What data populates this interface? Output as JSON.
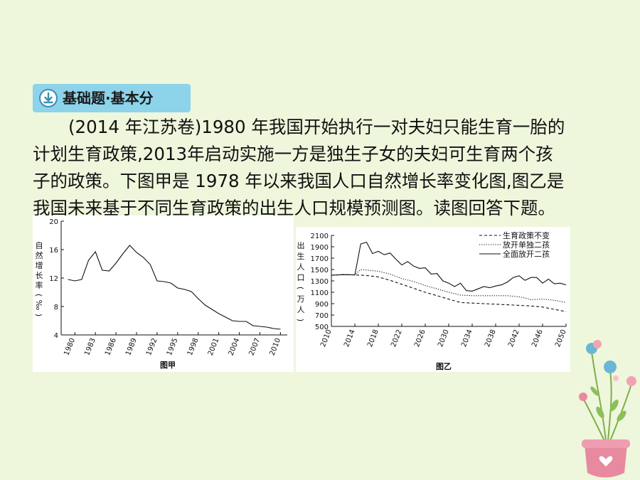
{
  "badge": {
    "label": "基础题·基本分",
    "icon": "download-icon",
    "color": "#8dd3ea"
  },
  "question": {
    "lines": [
      "(2014 年江苏卷)1980 年我国开始执行一对夫妇只能生育一胎的",
      "计划生育政策,2013年启动实施一方是独生子女的夫妇可生育两个孩",
      "子的政策。下图甲是 1978 年以来我国人口自然增长率变化图,图乙是",
      "我国未来基于不同生育政策的出生人口规模预测图。读图回答下题。"
    ]
  },
  "chart_data": [
    {
      "type": "line",
      "title": "图甲",
      "xlabel": "",
      "ylabel": "自然增长率(‰)",
      "xlim": [
        1978,
        2011
      ],
      "ylim": [
        4,
        20
      ],
      "xticks": [
        1980,
        1983,
        1986,
        1989,
        1992,
        1995,
        1998,
        2001,
        2004,
        2007,
        2010
      ],
      "yticks": [
        4,
        8,
        12,
        16,
        20
      ],
      "grid": false,
      "series": [
        {
          "x": [
            1979,
            1980,
            1981,
            1982,
            1983,
            1984,
            1985,
            1986,
            1987,
            1988,
            1989,
            1990,
            1991,
            1992,
            1993,
            1994,
            1995,
            1996,
            1997,
            1998,
            1999,
            2000,
            2001,
            2002,
            2003,
            2004,
            2005,
            2006,
            2007,
            2008,
            2009,
            2010
          ],
          "y": [
            11.8,
            11.6,
            11.8,
            14.5,
            15.7,
            13.1,
            13.0,
            14.1,
            15.4,
            16.6,
            15.6,
            14.9,
            13.9,
            11.6,
            11.5,
            11.3,
            10.6,
            10.4,
            10.1,
            9.1,
            8.2,
            7.6,
            7.0,
            6.5,
            6.0,
            5.9,
            5.9,
            5.3,
            5.2,
            5.1,
            4.9,
            4.8
          ]
        }
      ]
    },
    {
      "type": "line",
      "title": "图乙",
      "xlabel": "",
      "ylabel": "出生人口(万人)",
      "xlim": [
        2010,
        2050
      ],
      "ylim": [
        500,
        2100
      ],
      "xticks": [
        2010,
        2014,
        2018,
        2022,
        2026,
        2030,
        2034,
        2038,
        2042,
        2046,
        2050
      ],
      "yticks": [
        500,
        700,
        900,
        1100,
        1300,
        1500,
        1700,
        1900,
        2100
      ],
      "grid": false,
      "legend": "top-right",
      "series": [
        {
          "name": "生育政策不变",
          "dash": "dashed",
          "x": [
            2010,
            2012,
            2014,
            2016,
            2018,
            2020,
            2022,
            2024,
            2026,
            2028,
            2030,
            2032,
            2034,
            2036,
            2038,
            2040,
            2042,
            2044,
            2046,
            2048,
            2050
          ],
          "y": [
            1400,
            1410,
            1405,
            1395,
            1370,
            1310,
            1240,
            1170,
            1100,
            1040,
            980,
            920,
            910,
            900,
            890,
            880,
            870,
            860,
            840,
            800,
            760
          ]
        },
        {
          "name": "放开单独二孩",
          "dash": "dotted",
          "x": [
            2010,
            2012,
            2014,
            2015,
            2016,
            2018,
            2020,
            2022,
            2024,
            2026,
            2028,
            2030,
            2032,
            2034,
            2036,
            2038,
            2040,
            2042,
            2043,
            2044,
            2046,
            2048,
            2050
          ],
          "y": [
            1400,
            1410,
            1405,
            1500,
            1490,
            1470,
            1420,
            1340,
            1290,
            1220,
            1160,
            1100,
            1050,
            1040,
            1040,
            1040,
            1040,
            1020,
            1000,
            970,
            980,
            960,
            920
          ]
        },
        {
          "name": "全面放开二孩",
          "dash": "solid",
          "x": [
            2010,
            2012,
            2014,
            2015,
            2016,
            2017,
            2018,
            2019,
            2020,
            2021,
            2022,
            2023,
            2024,
            2025,
            2026,
            2027,
            2028,
            2029,
            2030,
            2031,
            2032,
            2033,
            2034,
            2035,
            2036,
            2037,
            2038,
            2039,
            2040,
            2041,
            2042,
            2043,
            2044,
            2045,
            2046,
            2047,
            2048,
            2049,
            2050
          ],
          "y": [
            1400,
            1410,
            1405,
            1950,
            1980,
            1780,
            1820,
            1760,
            1790,
            1680,
            1580,
            1640,
            1560,
            1520,
            1530,
            1420,
            1430,
            1300,
            1260,
            1200,
            1260,
            1130,
            1120,
            1160,
            1200,
            1180,
            1210,
            1230,
            1280,
            1360,
            1390,
            1310,
            1360,
            1360,
            1260,
            1330,
            1250,
            1260,
            1230
          ]
        }
      ]
    }
  ]
}
